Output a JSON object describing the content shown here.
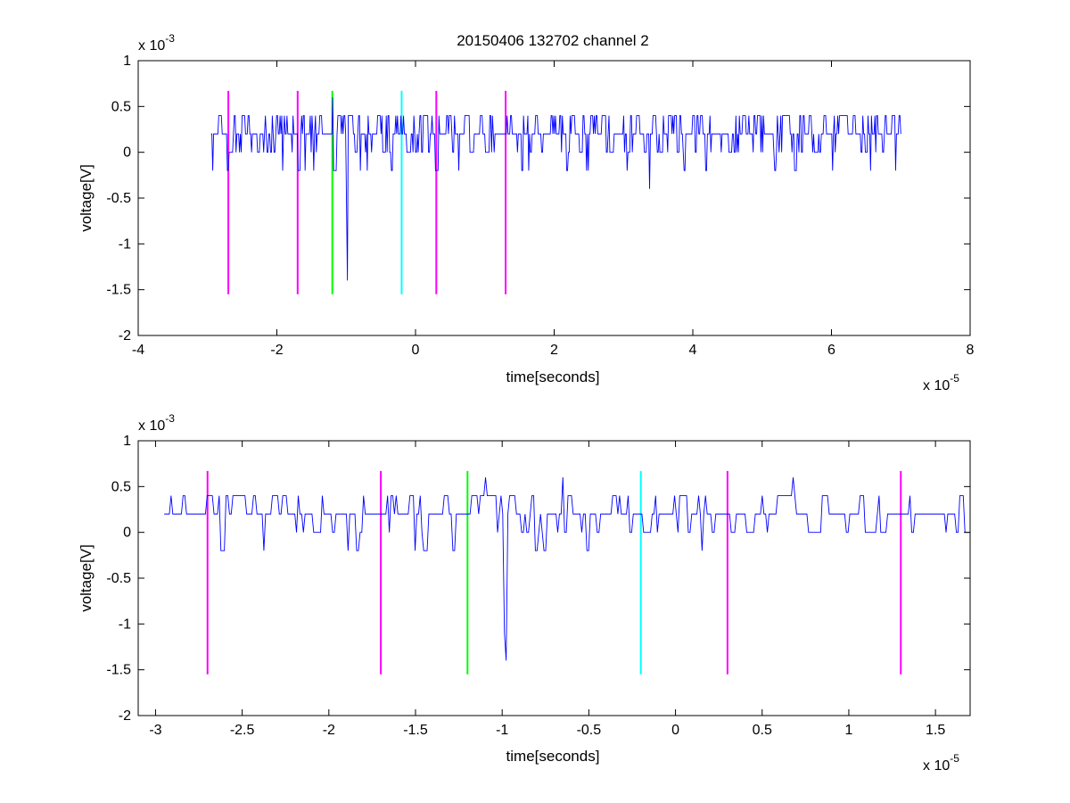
{
  "figure_title": "20150406 132702 channel 2",
  "chart_data": [
    {
      "type": "line",
      "title": "20150406 132702 channel 2",
      "xlabel": "time[seconds]",
      "ylabel": "voltage[V]",
      "x_exponent_label": "x 10",
      "x_exponent": "-5",
      "y_exponent_label": "x 10",
      "y_exponent": "-3",
      "xlim": [
        -4e-05,
        8e-05
      ],
      "ylim": [
        -0.002,
        0.001
      ],
      "xticks": [
        -4e-05,
        -2e-05,
        0,
        2e-05,
        4e-05,
        6e-05,
        8e-05
      ],
      "xtick_labels": [
        "-4",
        "-2",
        "0",
        "2",
        "4",
        "6",
        "8"
      ],
      "yticks": [
        -0.002,
        -0.0015,
        -0.001,
        -0.0005,
        0,
        0.0005,
        0.001
      ],
      "ytick_labels": [
        "-2",
        "-1.5",
        "-1",
        "-0.5",
        "0",
        "0.5",
        "1"
      ],
      "grid": false,
      "signal": {
        "color": "#0000ff",
        "x_start": -2.95e-05,
        "x_end": 7e-05,
        "points": 800,
        "levels": [
          -0.0002,
          0,
          0.0002,
          0.0004
        ],
        "seed": 7,
        "spikes": [
          {
            "x": -9.8e-06,
            "y": -0.0014
          },
          {
            "x": -1e-05,
            "y": -0.0006
          },
          {
            "x": 3.38e-05,
            "y": -0.0004
          },
          {
            "x": -1.2e-05,
            "y": 0.0006
          }
        ]
      },
      "markers": [
        {
          "x": -2.7e-05,
          "y_bottom": -0.00155,
          "y_top": 0.00067,
          "color": "#ff00ff"
        },
        {
          "x": -1.7e-05,
          "y_bottom": -0.00155,
          "y_top": 0.00067,
          "color": "#ff00ff"
        },
        {
          "x": -1.2e-05,
          "y_bottom": -0.00155,
          "y_top": 0.00067,
          "color": "#00ff00"
        },
        {
          "x": -2e-06,
          "y_bottom": -0.00155,
          "y_top": 0.00067,
          "color": "#00ffff"
        },
        {
          "x": 3e-06,
          "y_bottom": -0.00155,
          "y_top": 0.00067,
          "color": "#ff00ff"
        },
        {
          "x": 1.3e-05,
          "y_bottom": -0.00155,
          "y_top": 0.00067,
          "color": "#ff00ff"
        }
      ]
    },
    {
      "type": "line",
      "xlabel": "time[seconds]",
      "ylabel": "voltage[V]",
      "x_exponent_label": "x 10",
      "x_exponent": "-5",
      "y_exponent_label": "x 10",
      "y_exponent": "-3",
      "xlim": [
        -3.1e-05,
        1.7e-05
      ],
      "ylim": [
        -0.002,
        0.001
      ],
      "xticks": [
        -3e-05,
        -2.5e-05,
        -2e-05,
        -1.5e-05,
        -1e-05,
        -5e-06,
        0,
        5e-06,
        1e-05,
        1.5e-05
      ],
      "xtick_labels": [
        "-3",
        "-2.5",
        "-2",
        "-1.5",
        "-1",
        "-0.5",
        "0",
        "0.5",
        "1",
        "1.5"
      ],
      "yticks": [
        -0.002,
        -0.0015,
        -0.001,
        -0.0005,
        0,
        0.0005,
        0.001
      ],
      "ytick_labels": [
        "-2",
        "-1.5",
        "-1",
        "-0.5",
        "0",
        "0.5",
        "1"
      ],
      "grid": false,
      "signal": {
        "color": "#0000ff",
        "x_start": -2.95e-05,
        "x_end": 1.7e-05,
        "points": 470,
        "levels": [
          -0.0002,
          0,
          0.0002,
          0.0004
        ],
        "seed": 11,
        "spikes": [
          {
            "x": -9.8e-06,
            "y": -0.0014
          },
          {
            "x": -9.9e-06,
            "y": -0.0011
          },
          {
            "x": -1.1e-05,
            "y": 0.0006
          },
          {
            "x": -6.5e-06,
            "y": 0.0006
          },
          {
            "x": 6.8e-06,
            "y": 0.0006
          },
          {
            "x": -3e-05,
            "y": 0.0002
          }
        ]
      },
      "markers": [
        {
          "x": -2.7e-05,
          "y_bottom": -0.00155,
          "y_top": 0.00067,
          "color": "#ff00ff"
        },
        {
          "x": -1.7e-05,
          "y_bottom": -0.00155,
          "y_top": 0.00067,
          "color": "#ff00ff"
        },
        {
          "x": -1.2e-05,
          "y_bottom": -0.00155,
          "y_top": 0.00067,
          "color": "#00ff00"
        },
        {
          "x": -2e-06,
          "y_bottom": -0.00155,
          "y_top": 0.00067,
          "color": "#00ffff"
        },
        {
          "x": 3e-06,
          "y_bottom": -0.00155,
          "y_top": 0.00067,
          "color": "#ff00ff"
        },
        {
          "x": 1.3e-05,
          "y_bottom": -0.00155,
          "y_top": 0.00067,
          "color": "#ff00ff"
        }
      ]
    }
  ]
}
